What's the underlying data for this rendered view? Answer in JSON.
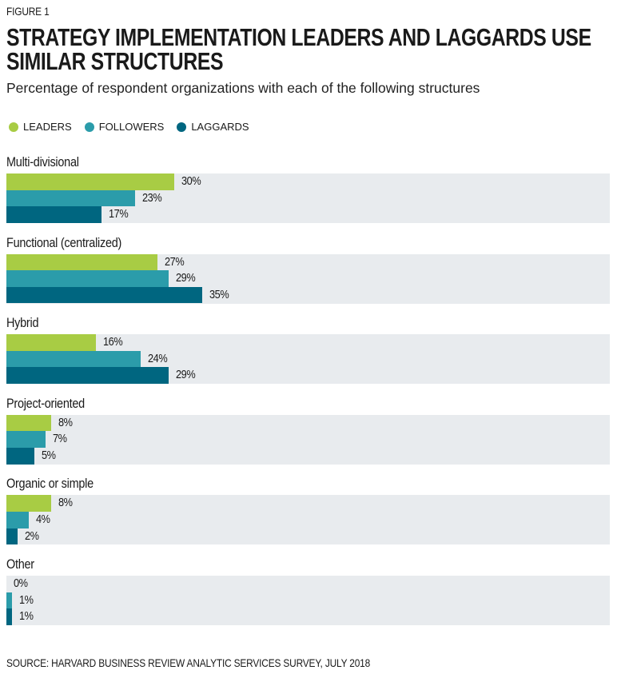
{
  "figure_label": "FIGURE 1",
  "title": "STRATEGY IMPLEMENTATION LEADERS AND LAGGARDS USE SIMILAR STRUCTURES",
  "subtitle": "Percentage of respondent organizations with each of the following structures",
  "source": "SOURCE: HARVARD BUSINESS REVIEW ANALYTIC SERVICES SURVEY, JULY 2018",
  "chart_data": {
    "type": "bar",
    "orientation": "horizontal",
    "title": "STRATEGY IMPLEMENTATION LEADERS AND LAGGARDS USE SIMILAR STRUCTURES",
    "subtitle": "Percentage of respondent organizations with each of the following structures",
    "xlabel": "",
    "ylabel": "",
    "xlim": [
      0,
      108
    ],
    "grid": false,
    "legend_position": "top-left",
    "categories": [
      "Multi-divisional",
      "Functional (centralized)",
      "Hybrid",
      "Project-oriented",
      "Organic or simple",
      "Other"
    ],
    "series": [
      {
        "name": "LEADERS",
        "color": "#a8cc44",
        "values": [
          30,
          27,
          16,
          8,
          8,
          0
        ]
      },
      {
        "name": "FOLLOWERS",
        "color": "#2b9caa",
        "values": [
          23,
          29,
          24,
          7,
          4,
          1
        ]
      },
      {
        "name": "LAGGARDS",
        "color": "#006680",
        "values": [
          17,
          35,
          29,
          5,
          2,
          1
        ]
      }
    ],
    "value_suffix": "%",
    "band_color": "#e8ebee"
  }
}
